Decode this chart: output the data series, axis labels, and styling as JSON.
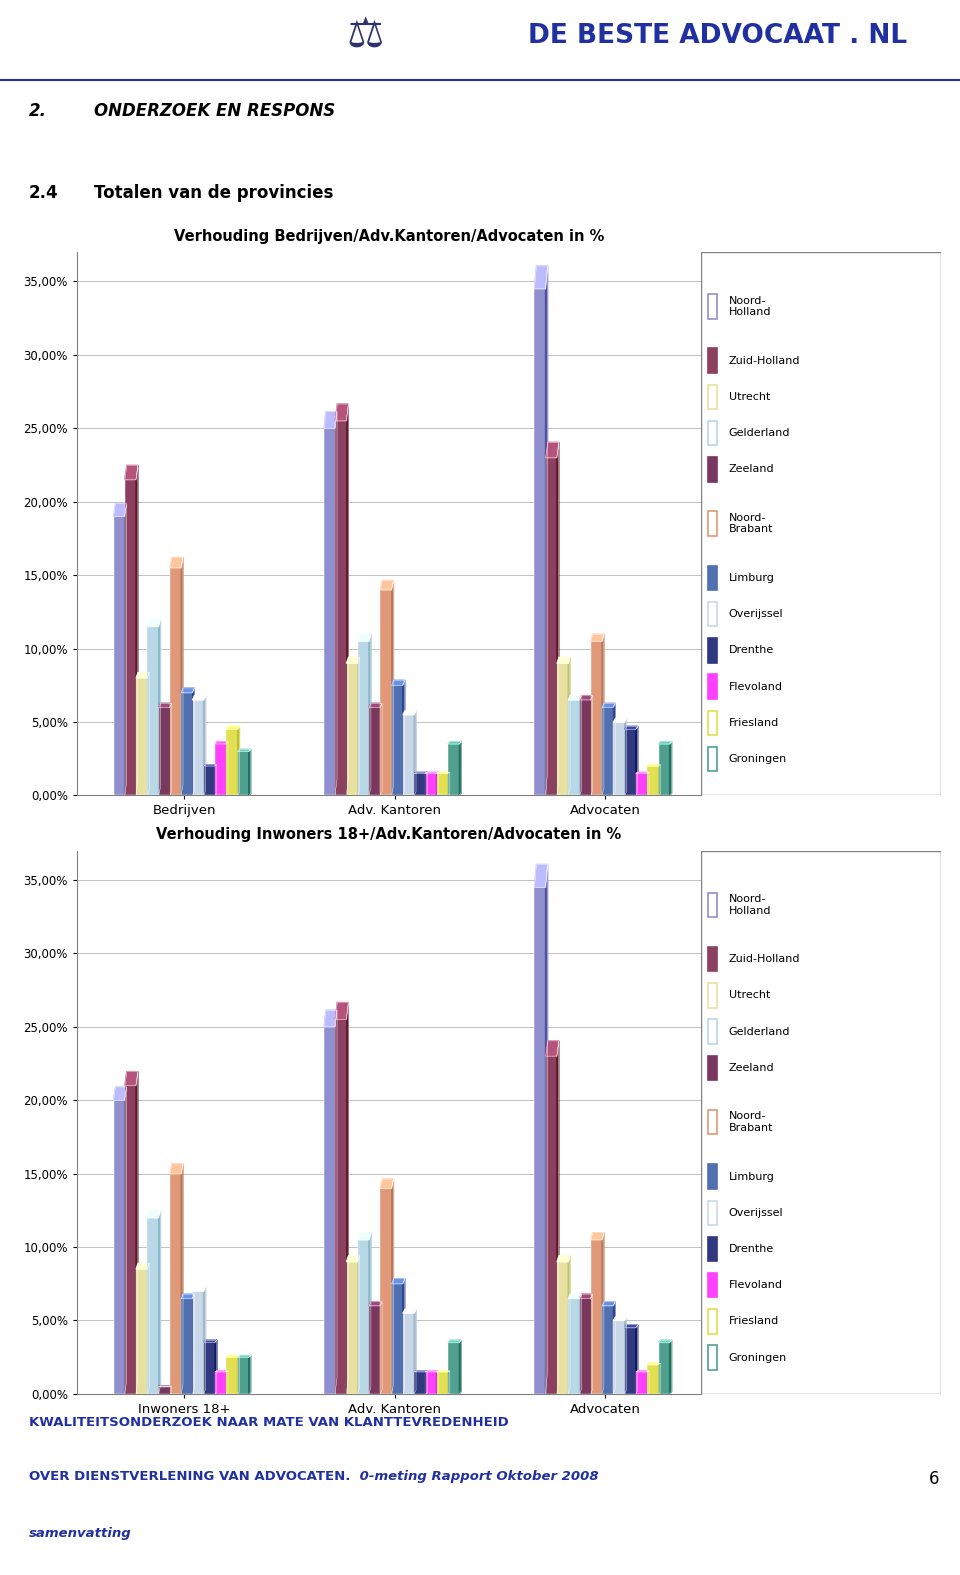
{
  "title1": "Verhouding Bedrijven/Adv.Kantoren/Advocaten in %",
  "title2": "Verhouding Inwoners 18+/Adv.Kantoren/Advocaten in %",
  "section_label": "2.",
  "section_text": "ONDERZOEK EN RESPONS",
  "subsection_label": "2.4",
  "subsection_text": "Totalen van de provincies",
  "categories1": [
    "Bedrijven",
    "Adv. Kantoren",
    "Advocaten"
  ],
  "categories2": [
    "Inwoners 18+",
    "Adv. Kantoren",
    "Advocaten"
  ],
  "provinces": [
    "Noord-Holland",
    "Zuid-Holland",
    "Utrecht",
    "Gelderland",
    "Zeeland",
    "Noord-Brabant",
    "Limburg",
    "Overijssel",
    "Drenthe",
    "Flevoland",
    "Friesland",
    "Groningen"
  ],
  "legend_names": [
    "Noord-\nHolland",
    "Zuid-Holland",
    "Utrecht",
    "Gelderland",
    "Zeeland",
    "Noord-\nBrabant",
    "Limburg",
    "Overijssel",
    "Drenthe",
    "Flevoland",
    "Friesland",
    "Groningen"
  ],
  "colors_face": [
    "#9090d0",
    "#8b4060",
    "#e8e0a0",
    "#b8d8e8",
    "#7a3860",
    "#e09878",
    "#5070b0",
    "#c8d8e8",
    "#303880",
    "#ff40ff",
    "#e0e050",
    "#50a090"
  ],
  "colors_side": [
    "#5050a0",
    "#601828",
    "#c0c870",
    "#88b8c8",
    "#501828",
    "#b87858",
    "#304090",
    "#a0b8c8",
    "#101860",
    "#c000c0",
    "#c0c020",
    "#207060"
  ],
  "chart1_data": [
    [
      19.0,
      25.0,
      34.5
    ],
    [
      21.5,
      25.5,
      23.0
    ],
    [
      8.0,
      9.0,
      9.0
    ],
    [
      11.5,
      10.5,
      6.5
    ],
    [
      6.0,
      6.0,
      6.5
    ],
    [
      15.5,
      14.0,
      10.5
    ],
    [
      7.0,
      7.5,
      6.0
    ],
    [
      6.5,
      5.5,
      5.0
    ],
    [
      2.0,
      1.5,
      4.5
    ],
    [
      3.5,
      1.5,
      1.5
    ],
    [
      4.5,
      1.5,
      2.0
    ],
    [
      3.0,
      3.5,
      3.5
    ]
  ],
  "chart2_data": [
    [
      20.0,
      25.0,
      34.5
    ],
    [
      21.0,
      25.5,
      23.0
    ],
    [
      8.5,
      9.0,
      9.0
    ],
    [
      12.0,
      10.5,
      6.5
    ],
    [
      0.5,
      6.0,
      6.5
    ],
    [
      15.0,
      14.0,
      10.5
    ],
    [
      6.5,
      7.5,
      6.0
    ],
    [
      7.0,
      5.5,
      5.0
    ],
    [
      3.5,
      1.5,
      4.5
    ],
    [
      1.5,
      1.5,
      1.5
    ],
    [
      2.5,
      1.5,
      2.0
    ],
    [
      2.5,
      3.5,
      3.5
    ]
  ],
  "ylim": [
    0,
    37
  ],
  "yticks": [
    0,
    5,
    10,
    15,
    20,
    25,
    30,
    35
  ],
  "ytick_labels": [
    "0,00%",
    "5,00%",
    "10,00%",
    "15,00%",
    "20,00%",
    "25,00%",
    "30,00%",
    "35,00%"
  ],
  "footer_line1": "KWALITEITSONDERZOEK NAAR MATE VAN KLANTTEVREDENHEID",
  "footer_line2_normal": "OVER DIENSTVERLENING VAN ADVOCATEN.",
  "footer_line2_italic": " 0-meting Rapport Oktober 2008",
  "footer_line3": "samenvatting",
  "footer_page": "6",
  "bg_color": "#ffffff",
  "chart_border_color": "#808080",
  "grid_color": "#c0c0c0",
  "header_color": "#2030a0",
  "footer_blue": "#2030a0"
}
